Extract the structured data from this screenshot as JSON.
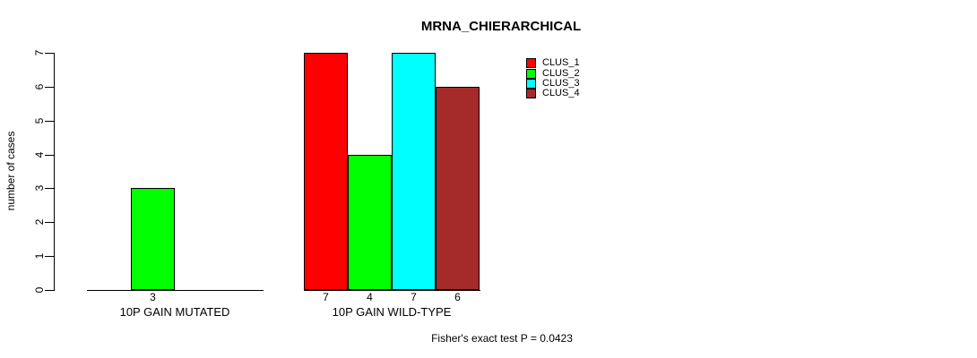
{
  "chart_data": {
    "type": "bar",
    "title": "MRNA_CHIERARCHICAL",
    "ylabel": "number of cases",
    "xlabel": "",
    "ylim": [
      0,
      7
    ],
    "yticks": [
      0,
      1,
      2,
      3,
      4,
      5,
      6,
      7
    ],
    "categories": [
      "10P GAIN MUTATED",
      "10P GAIN WILD-TYPE"
    ],
    "series": [
      {
        "name": "CLUS_1",
        "color": "#FF0000",
        "values": [
          0,
          7
        ]
      },
      {
        "name": "CLUS_2",
        "color": "#00FF00",
        "values": [
          3,
          4
        ]
      },
      {
        "name": "CLUS_3",
        "color": "#00FFFF",
        "values": [
          0,
          7
        ]
      },
      {
        "name": "CLUS_4",
        "color": "#A52A2A",
        "values": [
          0,
          6
        ]
      }
    ],
    "visible_value_labels": {
      "10P GAIN MUTATED": [
        "3"
      ],
      "10P GAIN WILD-TYPE": [
        "7",
        "4",
        "7",
        "6"
      ]
    },
    "annotation": "Fisher's exact test P = 0.0423",
    "legend_position": "top-right",
    "grid": false,
    "bar_border_color": "#000000",
    "axis_color": "#000000",
    "background": "#FFFFFF"
  }
}
